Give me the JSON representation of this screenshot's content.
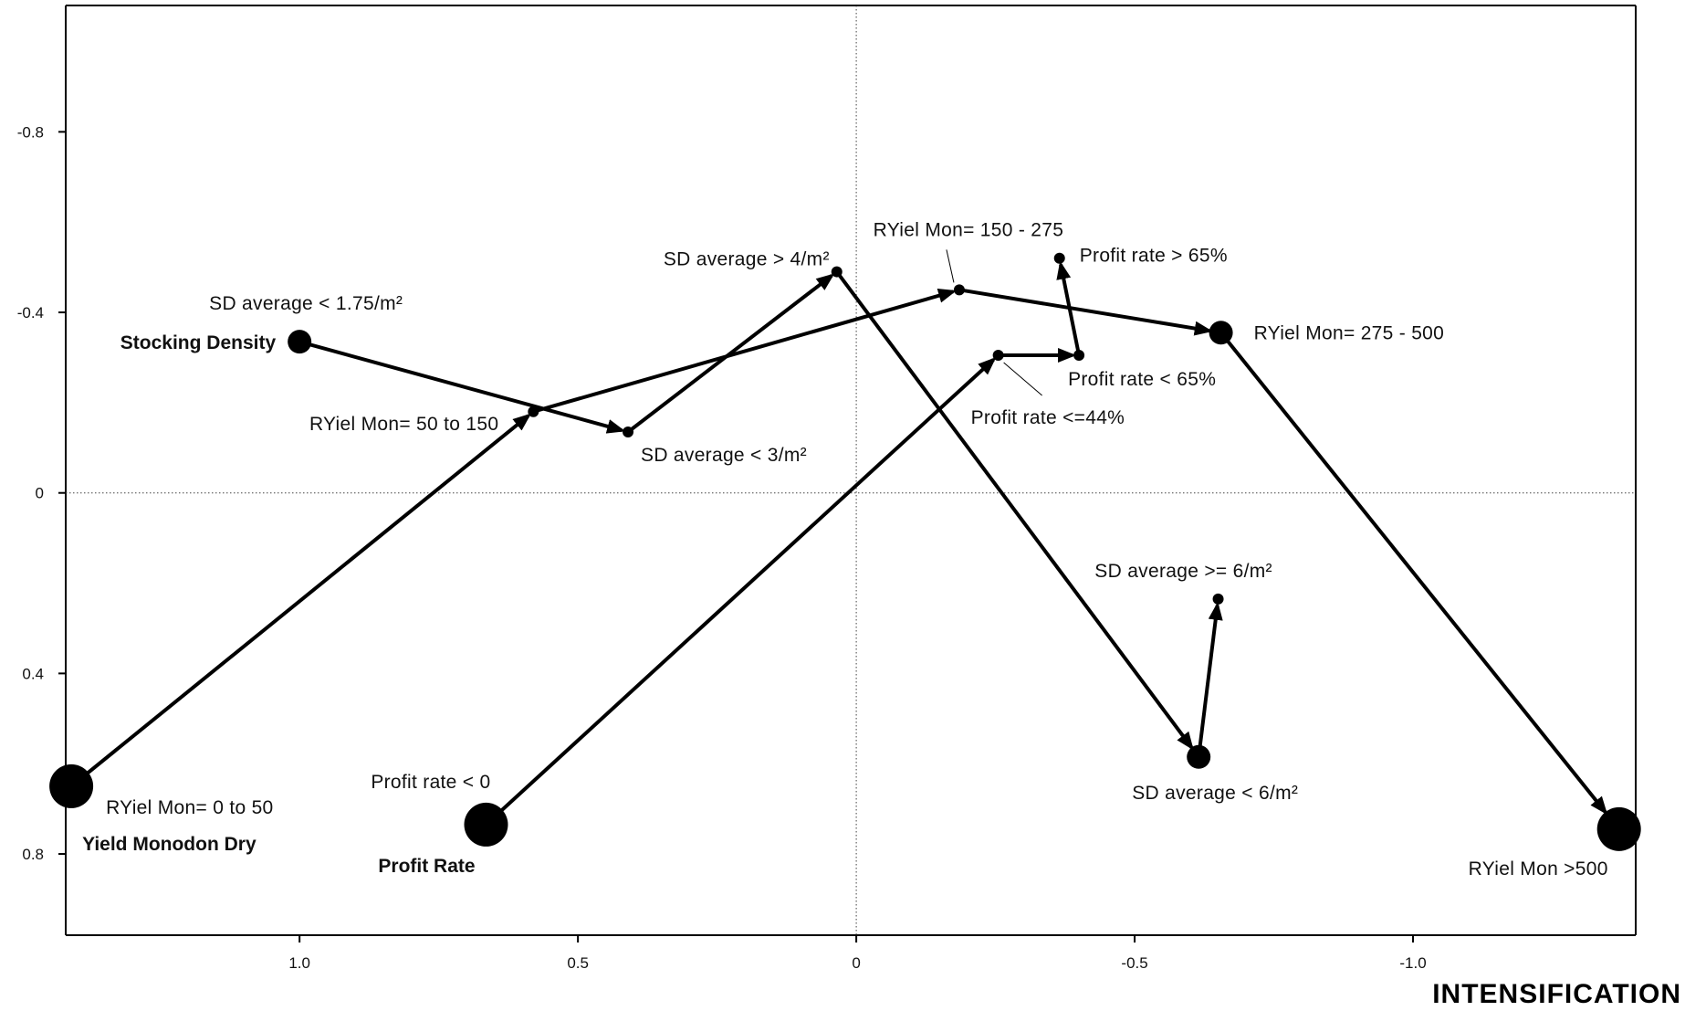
{
  "chart_data": {
    "type": "scatter",
    "title": "",
    "xlabel": "INTENSIFICATION",
    "ylabel": "",
    "xlim": [
      1.42,
      -1.4
    ],
    "ylim": [
      -1.08,
      0.98
    ],
    "x_reversed": true,
    "y_reversed": true,
    "x_ticks": [
      "1.0",
      "0.5",
      "0",
      "-0.5",
      "-1.0"
    ],
    "x_tick_values": [
      1.0,
      0.5,
      0,
      -0.5,
      -1.0
    ],
    "y_ticks": [
      "-0.8",
      "-0.4",
      "0",
      "0.4",
      "0.8"
    ],
    "y_tick_values": [
      -0.8,
      -0.4,
      0,
      0.4,
      0.8
    ],
    "grid": "zero lines dotted",
    "series": [
      {
        "name": "Yield Monodon Dry",
        "points": [
          {
            "label": "RYiel Mon= 0 to 50",
            "x": 1.41,
            "y": 0.65,
            "size": "large"
          },
          {
            "label": "RYiel Mon= 50 to 150",
            "x": 0.58,
            "y": -0.18,
            "size": "small"
          },
          {
            "label": "RYiel Mon= 150 - 275",
            "x": -0.185,
            "y": -0.45,
            "size": "small"
          },
          {
            "label": "RYiel Mon= 275 - 500",
            "x": -0.655,
            "y": -0.355,
            "size": "medium"
          },
          {
            "label": "RYiel Mon >500",
            "x": -1.37,
            "y": 0.745,
            "size": "large"
          }
        ]
      },
      {
        "name": "Stocking Density",
        "points": [
          {
            "label": "SD average < 1.75/m²",
            "x": 1.0,
            "y": -0.335,
            "size": "medium"
          },
          {
            "label": "SD average < 3/m²",
            "x": 0.41,
            "y": -0.135,
            "size": "small"
          },
          {
            "label": "SD average > 4/m²",
            "x": 0.035,
            "y": -0.49,
            "size": "small"
          },
          {
            "label": "SD average < 6/m²",
            "x": -0.615,
            "y": 0.585,
            "size": "medium"
          },
          {
            "label": "SD average >= 6/m²",
            "x": -0.65,
            "y": 0.235,
            "size": "small"
          }
        ]
      },
      {
        "name": "Profit Rate",
        "points": [
          {
            "label": "Profit rate < 0",
            "x": 0.665,
            "y": 0.735,
            "size": "large"
          },
          {
            "label": "Profit rate <=44%",
            "x": -0.255,
            "y": -0.305,
            "size": "small"
          },
          {
            "label": "Profit rate < 65%",
            "x": -0.4,
            "y": -0.305,
            "size": "small"
          },
          {
            "label": "Profit rate > 65%",
            "x": -0.365,
            "y": -0.52,
            "size": "small"
          }
        ]
      }
    ]
  }
}
